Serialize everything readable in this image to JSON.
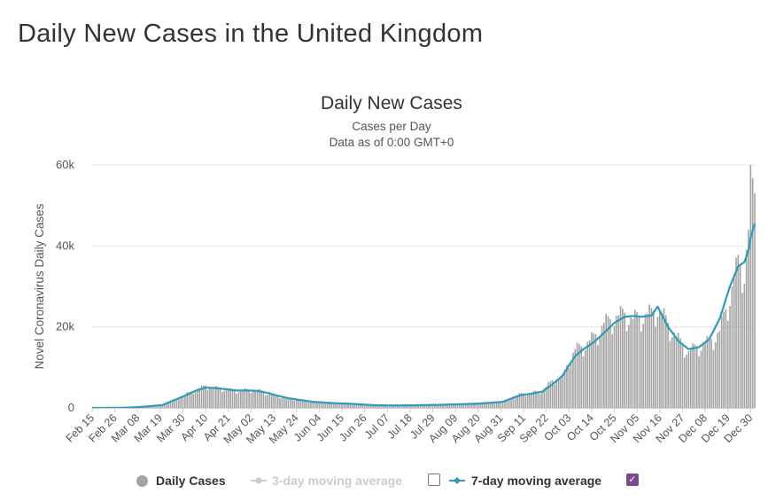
{
  "page": {
    "title": "Daily New Cases in the United Kingdom"
  },
  "colors": {
    "bars": "#a3a3a3",
    "avg7": "#2f9bb8",
    "avg3": "#cccccc",
    "checkbox": "#7b4a8e"
  },
  "chart_data": {
    "type": "bar",
    "title": "Daily New Cases",
    "subtitle": "Cases per Day",
    "subtitle2": "Data as of 0:00 GMT+0",
    "xlabel": "",
    "ylabel": "Novel Coronavirus Daily Cases",
    "ylim": [
      0,
      60000
    ],
    "yticks": [
      0,
      20000,
      40000,
      60000
    ],
    "ytick_labels": [
      "0",
      "20k",
      "40k",
      "60k"
    ],
    "x_start": "2020-02-15",
    "x_end": "2021-01-01",
    "xtick_labels": [
      "Feb 15",
      "Feb 26",
      "Mar 08",
      "Mar 19",
      "Mar 30",
      "Apr 10",
      "Apr 21",
      "May 02",
      "May 13",
      "May 24",
      "Jun 04",
      "Jun 15",
      "Jun 26",
      "Jul 07",
      "Jul 18",
      "Jul 29",
      "Aug 09",
      "Aug 20",
      "Aug 31",
      "Sep 11",
      "Sep 22",
      "Oct 03",
      "Oct 14",
      "Oct 25",
      "Nov 05",
      "Nov 16",
      "Nov 27",
      "Dec 08",
      "Dec 19",
      "Dec 30"
    ],
    "grid": true,
    "legend_position": "bottom",
    "series": [
      {
        "name": "Daily Cases",
        "type": "bar",
        "x": [
          "2020-02-15",
          "2020-03-01",
          "2020-03-10",
          "2020-03-20",
          "2020-03-30",
          "2020-04-05",
          "2020-04-10",
          "2020-04-15",
          "2020-04-20",
          "2020-04-25",
          "2020-05-01",
          "2020-05-05",
          "2020-05-10",
          "2020-05-15",
          "2020-05-20",
          "2020-05-25",
          "2020-06-01",
          "2020-06-10",
          "2020-06-20",
          "2020-07-01",
          "2020-07-10",
          "2020-07-20",
          "2020-08-01",
          "2020-08-10",
          "2020-08-20",
          "2020-09-01",
          "2020-09-06",
          "2020-09-10",
          "2020-09-15",
          "2020-09-20",
          "2020-09-25",
          "2020-09-30",
          "2020-10-03",
          "2020-10-06",
          "2020-10-10",
          "2020-10-15",
          "2020-10-20",
          "2020-10-25",
          "2020-10-30",
          "2020-11-03",
          "2020-11-07",
          "2020-11-12",
          "2020-11-15",
          "2020-11-20",
          "2020-11-25",
          "2020-11-30",
          "2020-12-05",
          "2020-12-10",
          "2020-12-15",
          "2020-12-20",
          "2020-12-24",
          "2020-12-27",
          "2020-12-29",
          "2020-12-30",
          "2021-01-01"
        ],
        "values": [
          0,
          30,
          300,
          800,
          3000,
          4500,
          5500,
          5000,
          4600,
          4300,
          4500,
          4500,
          3600,
          3000,
          2400,
          2000,
          1500,
          1200,
          1000,
          700,
          600,
          700,
          800,
          1000,
          1100,
          1600,
          2800,
          3500,
          3800,
          4300,
          6800,
          7500,
          12000,
          14500,
          15500,
          17500,
          21000,
          22500,
          23500,
          22000,
          23000,
          23500,
          25000,
          21000,
          17000,
          14000,
          15500,
          16500,
          19000,
          28000,
          36000,
          34000,
          44000,
          55000,
          53000
        ]
      },
      {
        "name": "3-day moving average",
        "type": "line",
        "visible": false
      },
      {
        "name": "7-day moving average",
        "type": "line",
        "x": [
          "2020-02-15",
          "2020-03-01",
          "2020-03-10",
          "2020-03-20",
          "2020-03-30",
          "2020-04-05",
          "2020-04-10",
          "2020-04-15",
          "2020-04-20",
          "2020-04-25",
          "2020-05-01",
          "2020-05-05",
          "2020-05-10",
          "2020-05-15",
          "2020-05-20",
          "2020-05-25",
          "2020-06-01",
          "2020-06-10",
          "2020-06-20",
          "2020-07-01",
          "2020-07-10",
          "2020-07-20",
          "2020-08-01",
          "2020-08-10",
          "2020-08-20",
          "2020-09-01",
          "2020-09-06",
          "2020-09-10",
          "2020-09-15",
          "2020-09-20",
          "2020-09-25",
          "2020-09-30",
          "2020-10-03",
          "2020-10-06",
          "2020-10-10",
          "2020-10-15",
          "2020-10-20",
          "2020-10-25",
          "2020-10-30",
          "2020-11-03",
          "2020-11-07",
          "2020-11-12",
          "2020-11-15",
          "2020-11-20",
          "2020-11-25",
          "2020-11-30",
          "2020-12-05",
          "2020-12-10",
          "2020-12-15",
          "2020-12-20",
          "2020-12-24",
          "2020-12-27",
          "2020-12-29",
          "2020-12-30",
          "2021-01-01"
        ],
        "values": [
          0,
          30,
          250,
          700,
          2800,
          4200,
          5000,
          4900,
          4600,
          4300,
          4300,
          4200,
          3700,
          3000,
          2400,
          2000,
          1500,
          1200,
          1000,
          650,
          600,
          650,
          750,
          900,
          1050,
          1500,
          2500,
          3200,
          3500,
          4000,
          5800,
          8000,
          10500,
          12800,
          14500,
          16200,
          18500,
          21000,
          22500,
          22700,
          22500,
          22800,
          25000,
          20000,
          16500,
          14500,
          15000,
          17000,
          22000,
          30000,
          35000,
          36000,
          39000,
          42000,
          45500
        ]
      }
    ]
  },
  "legend": {
    "daily_cases": "Daily Cases",
    "avg3": "3-day moving average",
    "avg7": "7-day moving average"
  }
}
